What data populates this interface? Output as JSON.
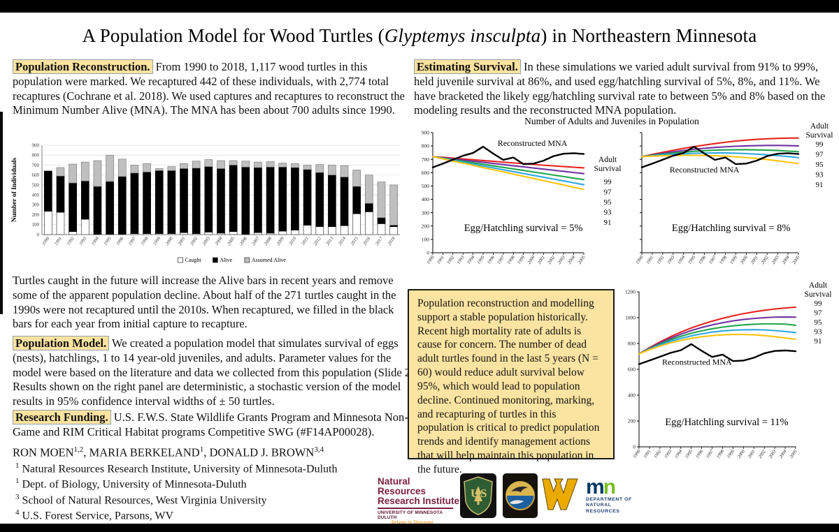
{
  "page": {
    "title_pre": "A Population Model for Wood Turtles (",
    "title_italic": "Glyptemys insculpta",
    "title_post": ") in Northeastern Minnesota"
  },
  "sections": {
    "pop_recon": {
      "header": "Population Reconstruction.",
      "body": " From 1990 to 2018, 1,117 wood turtles in this population were marked. We recaptured 442 of these individuals, with 2,774 total recaptures (Cochrane et al. 2018). We used captures and recaptures to reconstruct the Minimum Number Alive (MNA). The MNA has been about 700 adults since 1990."
    },
    "future": "Turtles caught in the future will increase the Alive bars in recent years and remove some of the apparent population decline. About half of the 271 turtles caught in the 1990s were not recaptured until the 2010s. When recaptured, we filled in the black bars for each year from initial capture to recapture.",
    "pop_model": {
      "header": "Population Model.",
      "body": " We created a population model that simulates survival of eggs (nests), hatchlings, 1 to 14 year-old juveniles, and adults. Parameter values for the model were based on the literature and data we collected from this population (Slide 2). Results shown on the right panel are deterministic, a stochastic version of the model results in 95% confidence interval widths of ± 50 turtles."
    },
    "funding": {
      "header": "Research Funding.",
      "body": " U.S. F.W.S. State Wildlife Grants Program and Minnesota Non-Game and RIM Critical Habitat programs Competitive SWG (#F14AP00028)."
    },
    "estimating": {
      "header": "Estimating Survival.",
      "body": " In these simulations we varied adult survival from 91% to 99%, held juvenile survival at 86%, and used egg/hatchling survival of 5%, 8%, and 11%. We have bracketed the likely egg/hatchling survival rate to between 5% and 8% based on the modeling results and the reconstructed MNA population."
    },
    "conclusion": "Population reconstruction and modelling support a stable population historically. Recent high mortality rate of adults is cause for concern. The number of dead adult turtles found in the last 5 years (N = 60) would reduce adult survival below 95%, which would lead to population decline. Continued monitoring, marking, and recapturing of turtles in this population is critical to predict population trends and identify management actions that will help maintain this population in the future."
  },
  "authors": [
    {
      "name": "RON MOEN",
      "sup": "1,2"
    },
    {
      "name": ", MARIA BERKELAND",
      "sup": "1"
    },
    {
      "name": ", DONALD J. BROWN",
      "sup": "3,4"
    }
  ],
  "affiliations": [
    {
      "sup": "1",
      "text": " Natural Resources Research Institute, University of Minnesota-Duluth"
    },
    {
      "sup": "1",
      "text": " Dept. of Biology, University of Minnesota-Duluth"
    },
    {
      "sup": "3",
      "text": " School of Natural Resources, West Virginia University"
    },
    {
      "sup": "4",
      "text": " U.S. Forest Service, Parsons, WV"
    }
  ],
  "right_panel": {
    "group_chart_title": "Number of Adults and Juveniles in Population"
  },
  "logos": {
    "nrri": {
      "line1": "Natural Resources",
      "line2": "Research Institute",
      "univ": "UNIVERSITY OF MINNESOTA DULUTH",
      "driven": "Driven to Discover"
    },
    "dnr": {
      "mark_m": "m",
      "mark_n": "n",
      "line1": "DEPARTMENT OF",
      "line2": "NATURAL RESOURCES"
    }
  },
  "chart_data": [
    {
      "type": "bar",
      "title": "",
      "ylabel": "Number of Individuals",
      "ylim": [
        0,
        900
      ],
      "ytick_step": 100,
      "stacking_note": "values are cumulative tops: caught (white), alive_cum (black top), total_cum (gray top = assumed alive)",
      "categories": [
        "1990",
        "1991",
        "1992",
        "1993",
        "1994",
        "1995",
        "1996",
        "1997",
        "1998",
        "1999",
        "2000",
        "2001",
        "2002",
        "2003",
        "2004",
        "2005",
        "2006",
        "2007",
        "2008",
        "2009",
        "2010",
        "2011",
        "2012",
        "2013",
        "2014",
        "2015",
        "2016",
        "2017",
        "2018"
      ],
      "caught": [
        235,
        225,
        30,
        155,
        5,
        5,
        5,
        10,
        10,
        10,
        10,
        20,
        10,
        25,
        15,
        30,
        5,
        20,
        15,
        35,
        45,
        95,
        80,
        80,
        90,
        210,
        230,
        110,
        80
      ],
      "alive_cum": [
        640,
        590,
        520,
        540,
        485,
        535,
        585,
        620,
        630,
        645,
        645,
        665,
        670,
        685,
        665,
        700,
        680,
        675,
        680,
        680,
        675,
        655,
        625,
        600,
        580,
        485,
        315,
        170,
        95
      ],
      "total_cum": [
        640,
        675,
        710,
        730,
        745,
        800,
        760,
        700,
        715,
        665,
        685,
        715,
        740,
        755,
        745,
        745,
        740,
        730,
        735,
        720,
        715,
        700,
        705,
        700,
        695,
        650,
        600,
        530,
        500
      ],
      "legend": [
        {
          "label": "Caught",
          "fill": "#ffffff"
        },
        {
          "label": "Alive",
          "fill": "#000000"
        },
        {
          "label": "Assumed Alive",
          "fill": "#bfbfbf"
        }
      ]
    },
    {
      "type": "line",
      "caption": "Egg/Hatchling survival = 5%",
      "legend_title": "Adult Survival",
      "mna_label": "Reconstructed MNA",
      "ylim": [
        0,
        900
      ],
      "ytick_step": 100,
      "show_ytick_labels": true,
      "x": [
        "1990",
        "1991",
        "1992",
        "1993",
        "1994",
        "1995",
        "1996",
        "1997",
        "1998",
        "1999",
        "2000",
        "2001",
        "2002",
        "2003",
        "2004",
        "2005"
      ],
      "series": [
        {
          "name": "99",
          "color": "#e8231f",
          "values": [
            720,
            715,
            709,
            703,
            697,
            691,
            685,
            679,
            673,
            668,
            662,
            656,
            651,
            646,
            641,
            636
          ]
        },
        {
          "name": "97",
          "color": "#7030a0",
          "values": [
            720,
            712,
            703,
            695,
            686,
            678,
            669,
            661,
            652,
            644,
            635,
            627,
            618,
            610,
            601,
            593
          ]
        },
        {
          "name": "95",
          "color": "#1ea44c",
          "values": [
            720,
            709,
            697,
            686,
            674,
            663,
            651,
            640,
            628,
            617,
            605,
            594,
            582,
            571,
            559,
            548
          ]
        },
        {
          "name": "93",
          "color": "#2fa8e1",
          "values": [
            720,
            706,
            692,
            678,
            664,
            650,
            636,
            622,
            608,
            594,
            580,
            566,
            552,
            538,
            524,
            510
          ]
        },
        {
          "name": "91",
          "color": "#ffc20e",
          "values": [
            720,
            704,
            687,
            671,
            655,
            638,
            622,
            606,
            589,
            573,
            557,
            540,
            524,
            508,
            491,
            475
          ]
        },
        {
          "name": "Reconstructed MNA",
          "color": "#000000",
          "values": [
            640,
            668,
            697,
            727,
            748,
            795,
            743,
            696,
            714,
            664,
            668,
            690,
            724,
            742,
            746,
            740
          ]
        }
      ]
    },
    {
      "type": "line",
      "caption": "Egg/Hatchling survival = 8%",
      "legend_title": "Adult Survival",
      "mna_label": "Reconstructed MNA",
      "ylim": [
        0,
        900
      ],
      "ytick_step": 100,
      "show_ytick_labels": false,
      "x": [
        "1990",
        "1991",
        "1992",
        "1993",
        "1994",
        "1995",
        "1996",
        "1997",
        "1998",
        "1999",
        "2000",
        "2001",
        "2002",
        "2003",
        "2004",
        "2005"
      ],
      "series": [
        {
          "name": "99",
          "color": "#e8231f",
          "values": [
            720,
            737,
            753,
            768,
            782,
            795,
            807,
            818,
            828,
            837,
            844,
            850,
            854,
            857,
            859,
            860
          ]
        },
        {
          "name": "97",
          "color": "#7030a0",
          "values": [
            720,
            733,
            745,
            756,
            766,
            775,
            783,
            789,
            794,
            798,
            801,
            803,
            804,
            804,
            803,
            801
          ]
        },
        {
          "name": "95",
          "color": "#1ea44c",
          "values": [
            720,
            730,
            739,
            747,
            754,
            760,
            765,
            769,
            771,
            772,
            772,
            771,
            769,
            766,
            762,
            757
          ]
        },
        {
          "name": "93",
          "color": "#2fa8e1",
          "values": [
            720,
            727,
            733,
            738,
            742,
            745,
            747,
            748,
            748,
            746,
            743,
            739,
            734,
            728,
            721,
            713
          ]
        },
        {
          "name": "91",
          "color": "#ffc20e",
          "values": [
            720,
            724,
            727,
            729,
            730,
            730,
            729,
            727,
            724,
            719,
            713,
            706,
            698,
            689,
            679,
            668
          ]
        },
        {
          "name": "Reconstructed MNA",
          "color": "#000000",
          "values": [
            640,
            668,
            697,
            727,
            748,
            795,
            743,
            696,
            714,
            664,
            668,
            690,
            724,
            742,
            746,
            740
          ]
        }
      ]
    },
    {
      "type": "line",
      "caption": "Egg/Hatchling survival = 11%",
      "legend_title": "Adult Survival",
      "mna_label": "Reconstructed MNA",
      "ylim": [
        0,
        1200
      ],
      "ytick_step": 200,
      "show_ytick_labels": true,
      "x": [
        "1990",
        "1991",
        "1992",
        "1993",
        "1994",
        "1995",
        "1996",
        "1997",
        "1998",
        "1999",
        "2000",
        "2001",
        "2002",
        "2003",
        "2004",
        "2005"
      ],
      "series": [
        {
          "name": "99",
          "color": "#e8231f",
          "values": [
            720,
            768,
            812,
            852,
            888,
            920,
            948,
            973,
            995,
            1014,
            1031,
            1045,
            1057,
            1067,
            1075,
            1081
          ]
        },
        {
          "name": "97",
          "color": "#7030a0",
          "values": [
            720,
            764,
            804,
            840,
            872,
            900,
            924,
            944,
            961,
            975,
            986,
            994,
            1000,
            1004,
            1005,
            1004
          ]
        },
        {
          "name": "95",
          "color": "#1ea44c",
          "values": [
            720,
            760,
            796,
            828,
            856,
            879,
            898,
            914,
            927,
            937,
            944,
            949,
            952,
            952,
            950,
            941
          ]
        },
        {
          "name": "93",
          "color": "#2fa8e1",
          "values": [
            720,
            756,
            788,
            816,
            840,
            859,
            875,
            888,
            897,
            903,
            906,
            907,
            905,
            900,
            893,
            884
          ]
        },
        {
          "name": "91",
          "color": "#ffc20e",
          "values": [
            720,
            752,
            780,
            804,
            824,
            840,
            852,
            861,
            867,
            870,
            870,
            867,
            861,
            853,
            843,
            833
          ]
        },
        {
          "name": "Reconstructed MNA",
          "color": "#000000",
          "values": [
            640,
            668,
            697,
            727,
            748,
            795,
            743,
            696,
            714,
            664,
            668,
            690,
            724,
            742,
            746,
            740
          ]
        }
      ]
    }
  ]
}
